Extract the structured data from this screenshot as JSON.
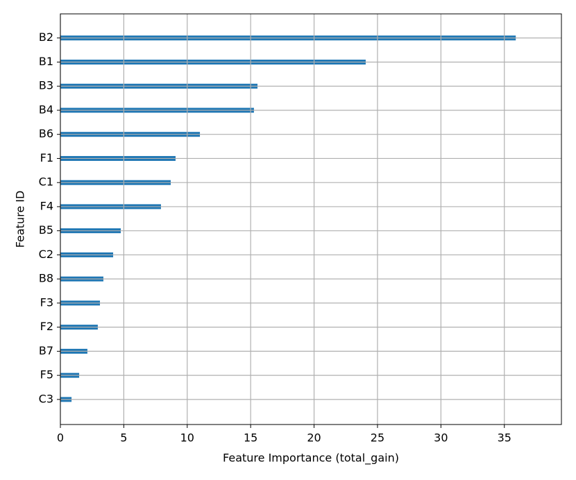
{
  "chart_data": {
    "type": "barh",
    "xlabel": "Feature Importance (total_gain)",
    "ylabel": "Feature ID",
    "categories": [
      "B2",
      "B1",
      "B3",
      "B4",
      "B6",
      "F1",
      "C1",
      "F4",
      "B5",
      "C2",
      "B8",
      "F3",
      "F2",
      "B7",
      "F5",
      "C3"
    ],
    "values": [
      35.9,
      24.07,
      15.54,
      15.26,
      11.0,
      9.08,
      8.7,
      7.93,
      4.76,
      4.16,
      3.39,
      3.12,
      2.95,
      2.13,
      1.48,
      0.88
    ],
    "color": "#1f77b4",
    "xlim": [
      0,
      39.5
    ],
    "xticks": [
      0,
      5,
      10,
      15,
      20,
      25,
      30,
      35
    ],
    "grid": true
  }
}
